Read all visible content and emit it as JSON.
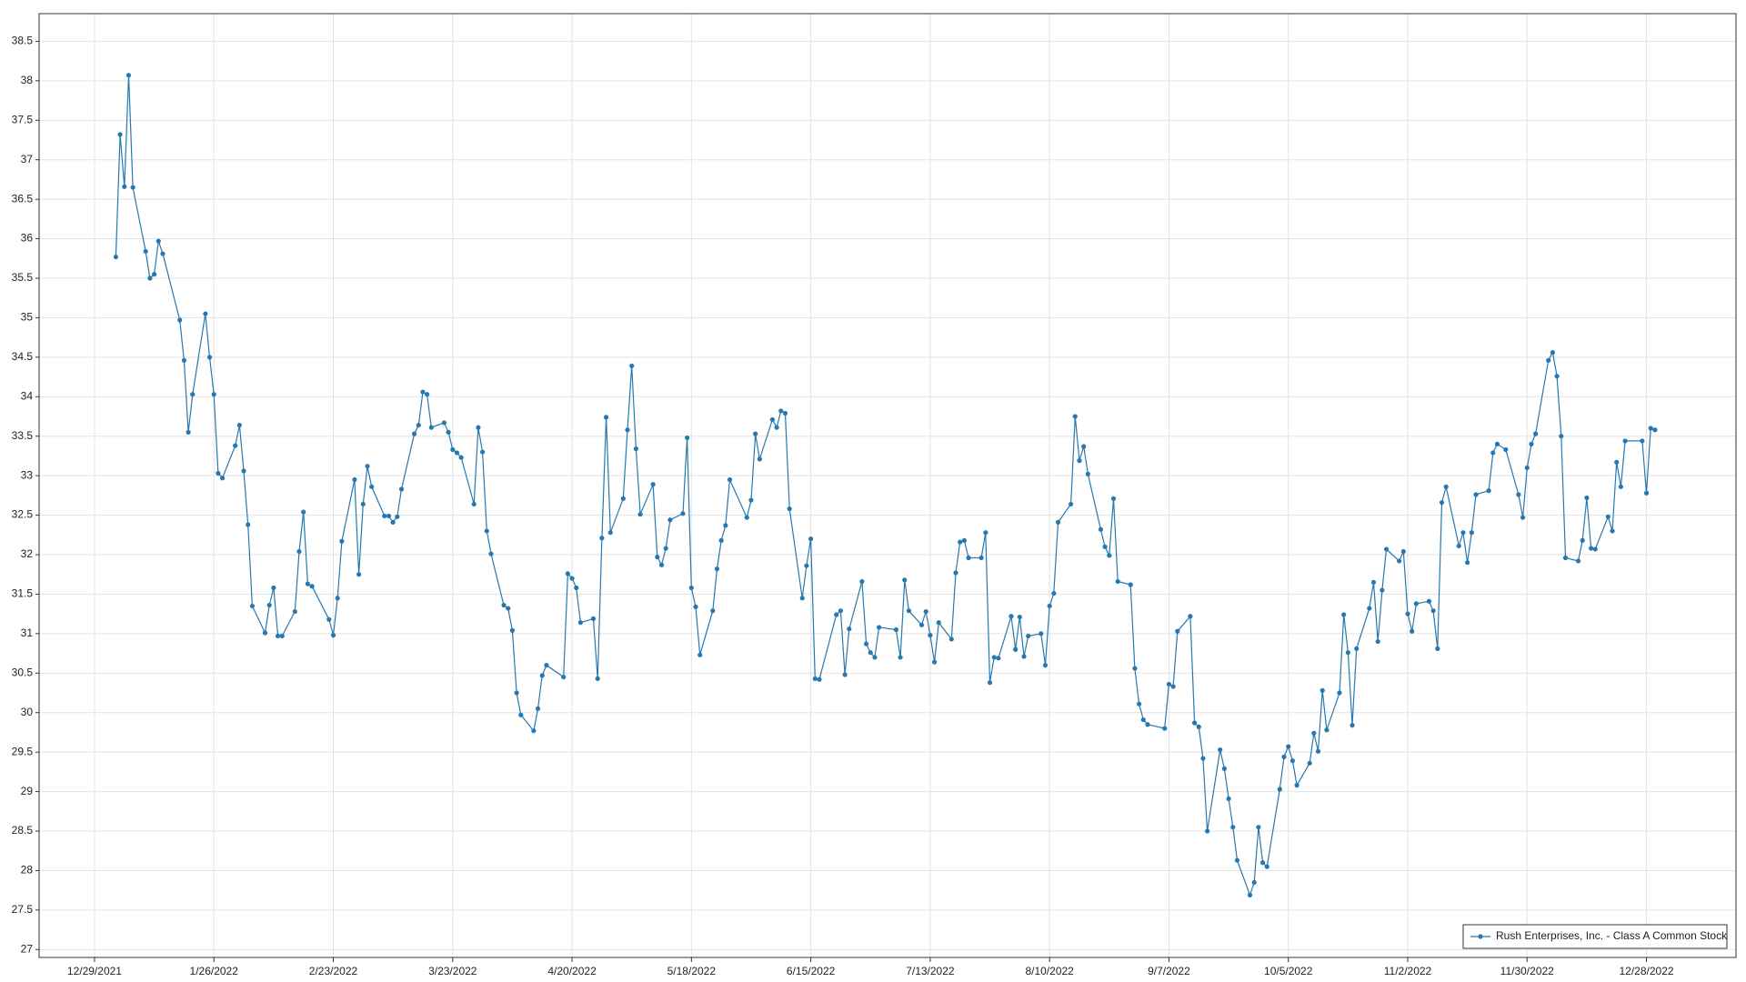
{
  "chart_data": {
    "type": "line",
    "x": [
      "1/3/2022",
      "1/4/2022",
      "1/5/2022",
      "1/6/2022",
      "1/7/2022",
      "1/10/2022",
      "1/11/2022",
      "1/12/2022",
      "1/13/2022",
      "1/14/2022",
      "1/18/2022",
      "1/19/2022",
      "1/20/2022",
      "1/21/2022",
      "1/24/2022",
      "1/25/2022",
      "1/26/2022",
      "1/27/2022",
      "1/28/2022",
      "1/31/2022",
      "2/1/2022",
      "2/2/2022",
      "2/3/2022",
      "2/4/2022",
      "2/7/2022",
      "2/8/2022",
      "2/9/2022",
      "2/10/2022",
      "2/11/2022",
      "2/14/2022",
      "2/15/2022",
      "2/16/2022",
      "2/17/2022",
      "2/18/2022",
      "2/22/2022",
      "2/23/2022",
      "2/24/2022",
      "2/25/2022",
      "2/28/2022",
      "3/1/2022",
      "3/2/2022",
      "3/3/2022",
      "3/4/2022",
      "3/7/2022",
      "3/8/2022",
      "3/9/2022",
      "3/10/2022",
      "3/11/2022",
      "3/14/2022",
      "3/15/2022",
      "3/16/2022",
      "3/17/2022",
      "3/18/2022",
      "3/21/2022",
      "3/22/2022",
      "3/23/2022",
      "3/24/2022",
      "3/25/2022",
      "3/28/2022",
      "3/29/2022",
      "3/30/2022",
      "3/31/2022",
      "4/1/2022",
      "4/4/2022",
      "4/5/2022",
      "4/6/2022",
      "4/7/2022",
      "4/8/2022",
      "4/11/2022",
      "4/12/2022",
      "4/13/2022",
      "4/14/2022",
      "4/18/2022",
      "4/19/2022",
      "4/20/2022",
      "4/21/2022",
      "4/22/2022",
      "4/25/2022",
      "4/26/2022",
      "4/27/2022",
      "4/28/2022",
      "4/29/2022",
      "5/2/2022",
      "5/3/2022",
      "5/4/2022",
      "5/5/2022",
      "5/6/2022",
      "5/9/2022",
      "5/10/2022",
      "5/11/2022",
      "5/12/2022",
      "5/13/2022",
      "5/16/2022",
      "5/17/2022",
      "5/18/2022",
      "5/19/2022",
      "5/20/2022",
      "5/23/2022",
      "5/24/2022",
      "5/25/2022",
      "5/26/2022",
      "5/27/2022",
      "5/31/2022",
      "6/1/2022",
      "6/2/2022",
      "6/3/2022",
      "6/6/2022",
      "6/7/2022",
      "6/8/2022",
      "6/9/2022",
      "6/10/2022",
      "6/13/2022",
      "6/14/2022",
      "6/15/2022",
      "6/16/2022",
      "6/17/2022",
      "6/21/2022",
      "6/22/2022",
      "6/23/2022",
      "6/24/2022",
      "6/27/2022",
      "6/28/2022",
      "6/29/2022",
      "6/30/2022",
      "7/1/2022",
      "7/5/2022",
      "7/6/2022",
      "7/7/2022",
      "7/8/2022",
      "7/11/2022",
      "7/12/2022",
      "7/13/2022",
      "7/14/2022",
      "7/15/2022",
      "7/18/2022",
      "7/19/2022",
      "7/20/2022",
      "7/21/2022",
      "7/22/2022",
      "7/25/2022",
      "7/26/2022",
      "7/27/2022",
      "7/28/2022",
      "7/29/2022",
      "8/1/2022",
      "8/2/2022",
      "8/3/2022",
      "8/4/2022",
      "8/5/2022",
      "8/8/2022",
      "8/9/2022",
      "8/10/2022",
      "8/11/2022",
      "8/12/2022",
      "8/15/2022",
      "8/16/2022",
      "8/17/2022",
      "8/18/2022",
      "8/19/2022",
      "8/22/2022",
      "8/23/2022",
      "8/24/2022",
      "8/25/2022",
      "8/26/2022",
      "8/29/2022",
      "8/30/2022",
      "8/31/2022",
      "9/1/2022",
      "9/2/2022",
      "9/6/2022",
      "9/7/2022",
      "9/8/2022",
      "9/9/2022",
      "9/12/2022",
      "9/13/2022",
      "9/14/2022",
      "9/15/2022",
      "9/16/2022",
      "9/19/2022",
      "9/20/2022",
      "9/21/2022",
      "9/22/2022",
      "9/23/2022",
      "9/26/2022",
      "9/27/2022",
      "9/28/2022",
      "9/29/2022",
      "9/30/2022",
      "10/3/2022",
      "10/4/2022",
      "10/5/2022",
      "10/6/2022",
      "10/7/2022",
      "10/10/2022",
      "10/11/2022",
      "10/12/2022",
      "10/13/2022",
      "10/14/2022",
      "10/17/2022",
      "10/18/2022",
      "10/19/2022",
      "10/20/2022",
      "10/21/2022",
      "10/24/2022",
      "10/25/2022",
      "10/26/2022",
      "10/27/2022",
      "10/28/2022",
      "10/31/2022",
      "11/1/2022",
      "11/2/2022",
      "11/3/2022",
      "11/4/2022",
      "11/7/2022",
      "11/8/2022",
      "11/9/2022",
      "11/10/2022",
      "11/11/2022",
      "11/14/2022",
      "11/15/2022",
      "11/16/2022",
      "11/17/2022",
      "11/18/2022",
      "11/21/2022",
      "11/22/2022",
      "11/23/2022",
      "11/25/2022",
      "11/28/2022",
      "11/29/2022",
      "11/30/2022",
      "12/1/2022",
      "12/2/2022",
      "12/5/2022",
      "12/6/2022",
      "12/7/2022",
      "12/8/2022",
      "12/9/2022",
      "12/12/2022",
      "12/13/2022",
      "12/14/2022",
      "12/15/2022",
      "12/16/2022",
      "12/19/2022",
      "12/20/2022",
      "12/21/2022",
      "12/22/2022",
      "12/23/2022",
      "12/27/2022",
      "12/28/2022",
      "12/29/2022",
      "12/30/2022"
    ],
    "series": [
      {
        "name": "Rush Enterprises, Inc. - Class A Common Stock",
        "color": "#2878b0",
        "values": [
          35.77,
          37.32,
          36.66,
          38.07,
          36.65,
          35.84,
          35.5,
          35.55,
          35.97,
          35.81,
          34.97,
          34.46,
          33.55,
          34.03,
          35.05,
          34.5,
          34.03,
          33.03,
          32.97,
          33.38,
          33.64,
          33.06,
          32.38,
          31.35,
          31.01,
          31.36,
          31.58,
          30.97,
          30.97,
          31.28,
          32.04,
          32.54,
          31.63,
          31.6,
          31.18,
          30.98,
          31.45,
          32.17,
          32.95,
          31.75,
          32.64,
          33.12,
          32.86,
          32.49,
          32.49,
          32.41,
          32.48,
          32.83,
          33.53,
          33.64,
          34.06,
          34.03,
          33.61,
          33.67,
          33.55,
          33.33,
          33.29,
          33.23,
          32.64,
          33.61,
          33.3,
          32.3,
          32.01,
          31.36,
          31.32,
          31.04,
          30.25,
          29.97,
          29.77,
          30.05,
          30.47,
          30.6,
          30.45,
          31.76,
          31.7,
          31.58,
          31.14,
          31.19,
          30.43,
          32.21,
          33.74,
          32.28,
          32.71,
          33.58,
          34.39,
          33.34,
          32.51,
          32.89,
          31.97,
          31.87,
          32.08,
          32.44,
          32.52,
          33.48,
          31.58,
          31.34,
          30.73,
          31.29,
          31.82,
          32.18,
          32.37,
          32.95,
          32.47,
          32.69,
          33.53,
          33.21,
          33.71,
          33.61,
          33.82,
          33.79,
          32.58,
          31.45,
          31.86,
          32.2,
          30.43,
          30.42,
          31.24,
          31.29,
          30.48,
          31.06,
          31.66,
          30.87,
          30.76,
          30.7,
          31.08,
          31.05,
          30.7,
          31.68,
          31.29,
          31.11,
          31.28,
          30.98,
          30.64,
          31.14,
          30.93,
          31.77,
          32.16,
          32.18,
          31.96,
          31.96,
          32.28,
          30.38,
          30.7,
          30.69,
          31.22,
          30.8,
          31.21,
          30.71,
          30.97,
          31.0,
          30.6,
          31.35,
          31.51,
          32.41,
          32.64,
          33.75,
          33.19,
          33.37,
          33.02,
          32.32,
          32.1,
          31.99,
          32.71,
          31.66,
          31.62,
          30.56,
          30.11,
          29.91,
          29.85,
          29.8,
          30.36,
          30.33,
          31.03,
          31.22,
          29.87,
          29.82,
          29.42,
          28.5,
          29.53,
          29.29,
          28.91,
          28.55,
          28.13,
          27.69,
          27.85,
          28.55,
          28.1,
          28.05,
          29.03,
          29.44,
          29.57,
          29.39,
          29.08,
          29.36,
          29.74,
          29.51,
          30.28,
          29.78,
          30.25,
          31.24,
          30.76,
          29.84,
          30.81,
          31.32,
          31.65,
          30.9,
          31.55,
          32.07,
          31.92,
          32.04,
          31.25,
          31.03,
          31.38,
          31.41,
          31.29,
          30.81,
          32.66,
          32.86,
          32.11,
          32.28,
          31.9,
          32.28,
          32.76,
          32.81,
          33.29,
          33.4,
          33.33,
          32.76,
          32.47,
          33.1,
          33.4,
          33.53,
          34.46,
          34.56,
          34.26,
          33.5,
          31.96,
          31.92,
          32.18,
          32.72,
          32.08,
          32.07,
          32.48,
          32.3,
          33.17,
          32.86,
          33.44,
          33.44,
          32.78,
          33.6,
          33.58
        ]
      }
    ],
    "xlim": [
      "12/16/2021",
      "1/18/2023"
    ],
    "xticks": [
      "12/29/2021",
      "1/26/2022",
      "2/23/2022",
      "3/23/2022",
      "4/20/2022",
      "5/18/2022",
      "6/15/2022",
      "7/13/2022",
      "8/10/2022",
      "9/7/2022",
      "10/5/2022",
      "11/2/2022",
      "11/30/2022",
      "12/28/2022"
    ],
    "ylim": [
      26.9,
      38.85
    ],
    "yticks": [
      27,
      27.5,
      28,
      28.5,
      29,
      29.5,
      30,
      30.5,
      31,
      31.5,
      32,
      32.5,
      33,
      33.5,
      34,
      34.5,
      35,
      35.5,
      36,
      36.5,
      37,
      37.5,
      38,
      38.5
    ],
    "grid": true,
    "legend": "lower right"
  }
}
